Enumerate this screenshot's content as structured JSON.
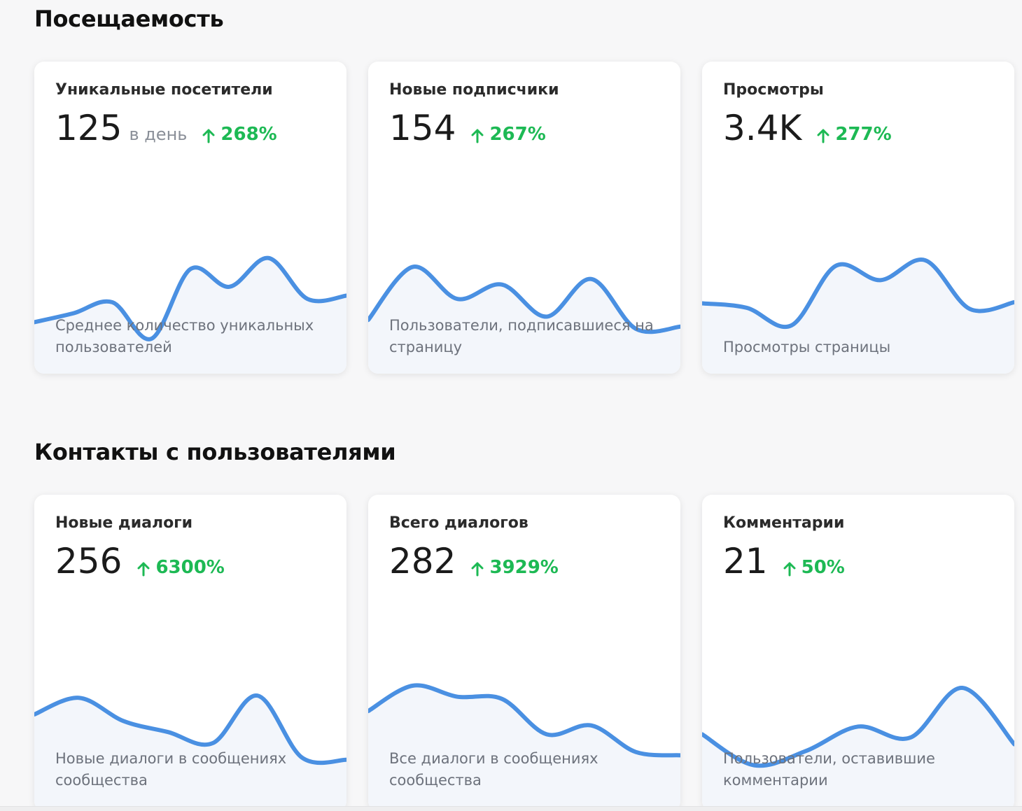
{
  "sections": [
    {
      "title": "Посещаемость",
      "cards": [
        {
          "title": "Уникальные посетители",
          "value": "125",
          "unit": "в день",
          "change": "268%",
          "description": "Среднее количество уникальных пользователей",
          "trend_points": [
            0.2,
            0.28,
            0.38,
            0.05,
            0.68,
            0.52,
            0.78,
            0.41,
            0.44
          ]
        },
        {
          "title": "Новые подписчики",
          "value": "154",
          "unit": "",
          "change": "267%",
          "description": "Пользователи, подписавшиеся на страницу",
          "trend_points": [
            0.22,
            0.7,
            0.41,
            0.54,
            0.25,
            0.59,
            0.14,
            0.16
          ]
        },
        {
          "title": "Просмотры",
          "value": "3.4K",
          "unit": "",
          "change": "277%",
          "description": "Просмотры страницы",
          "trend_points": [
            0.37,
            0.33,
            0.17,
            0.71,
            0.58,
            0.76,
            0.32,
            0.38
          ]
        }
      ]
    },
    {
      "title": "Контакты с пользователями",
      "cards": [
        {
          "title": "Новые диалоги",
          "value": "256",
          "unit": "",
          "change": "6300%",
          "description": "Новые диалоги в сообщениях сообщества",
          "trend_points": [
            0.57,
            0.72,
            0.51,
            0.41,
            0.31,
            0.74,
            0.18,
            0.16
          ]
        },
        {
          "title": "Всего диалогов",
          "value": "282",
          "unit": "",
          "change": "3929%",
          "description": "Все диалоги в сообщениях сообщества",
          "trend_points": [
            0.6,
            0.83,
            0.73,
            0.71,
            0.39,
            0.47,
            0.23,
            0.2
          ]
        },
        {
          "title": "Комментарии",
          "value": "21",
          "unit": "",
          "change": "50%",
          "description": "Пользователи, оставившие комментарии",
          "trend_points": [
            0.39,
            0.11,
            0.24,
            0.46,
            0.36,
            0.81,
            0.3
          ]
        }
      ]
    }
  ],
  "colors": {
    "line": "#4a90e2",
    "fill": "#f3f6fb",
    "trend_up": "#1db954"
  },
  "trend_icon": "arrow-up-icon"
}
